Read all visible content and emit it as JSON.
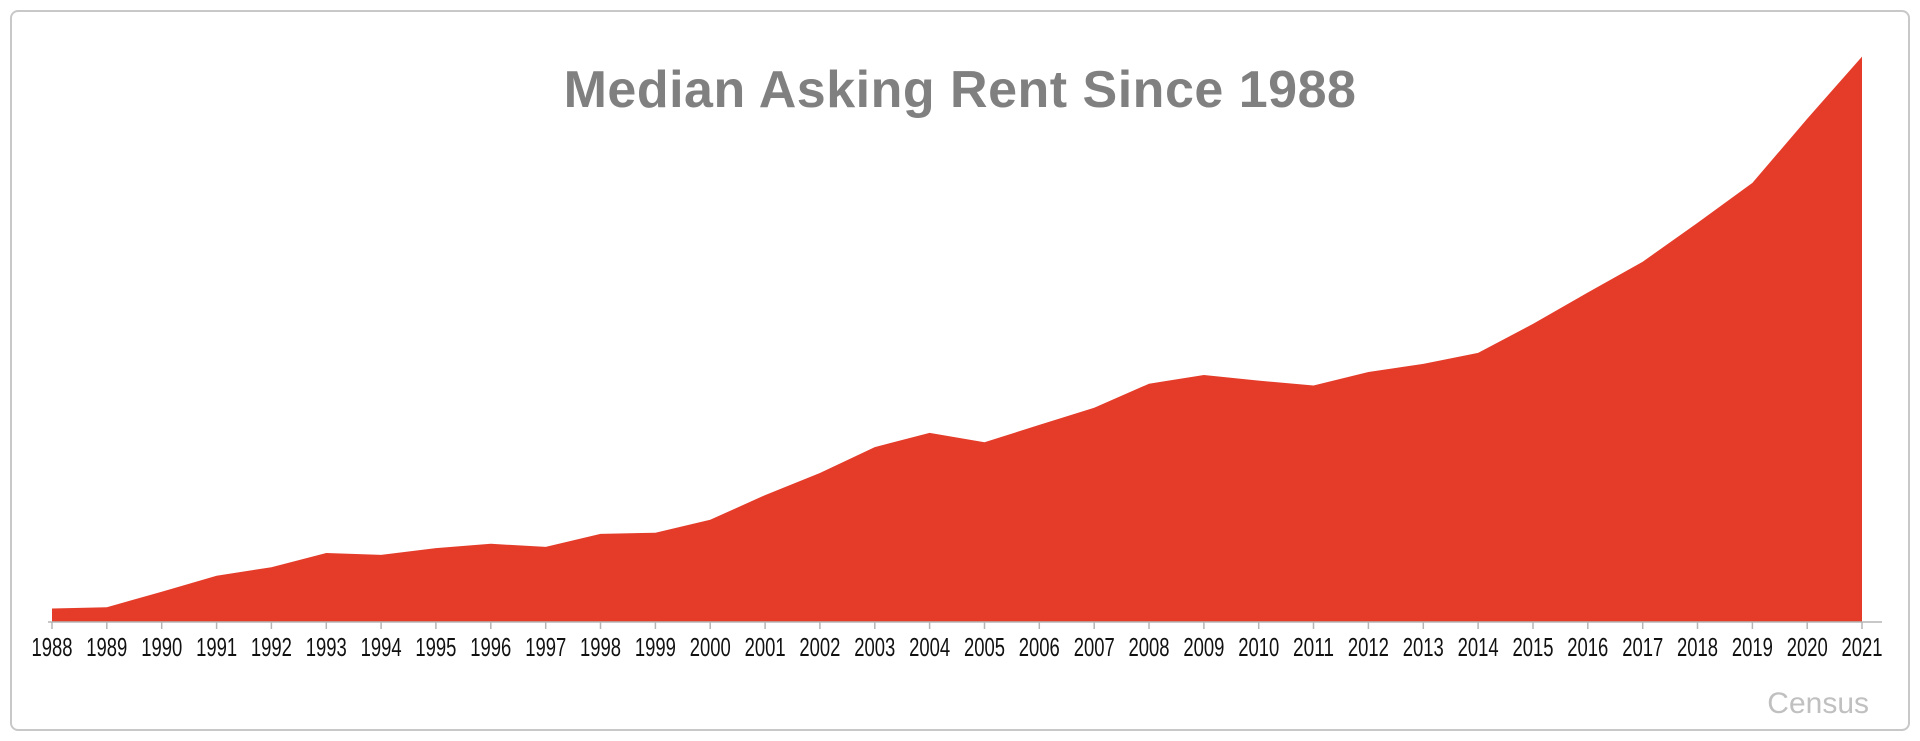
{
  "chart": {
    "title": "Median Asking Rent Since 1988",
    "source_label": "Census",
    "colors": {
      "area": "#e53c2a",
      "title": "#808080",
      "source": "#c0c0c0",
      "frame_border": "#c8c8c8",
      "axis": "#b5b5b5",
      "tick_label": "#111111"
    }
  },
  "chart_data": {
    "type": "area",
    "title": "Median Asking Rent Since 1988",
    "source": "Census",
    "categories": [
      "1988",
      "1989",
      "1990",
      "1991",
      "1992",
      "1993",
      "1994",
      "1995",
      "1996",
      "1997",
      "1998",
      "1999",
      "2000",
      "2001",
      "2002",
      "2003",
      "2004",
      "2005",
      "2006",
      "2007",
      "2008",
      "2009",
      "2010",
      "2011",
      "2012",
      "2013",
      "2014",
      "2015",
      "2016",
      "2017",
      "2018",
      "2019",
      "2020",
      "2021"
    ],
    "values": [
      330,
      332,
      357,
      383,
      397,
      420,
      417,
      428,
      435,
      430,
      451,
      453,
      474,
      514,
      550,
      592,
      615,
      600,
      628,
      656,
      695,
      709,
      700,
      692,
      714,
      727,
      745,
      792,
      843,
      893,
      956,
      1021,
      1125,
      1226
    ],
    "xlabel": "",
    "ylabel": "",
    "ylim": [
      308,
      1240
    ],
    "grid": false,
    "legend": false,
    "y_axis_shown": false,
    "series_name": "Median Asking Rent"
  }
}
